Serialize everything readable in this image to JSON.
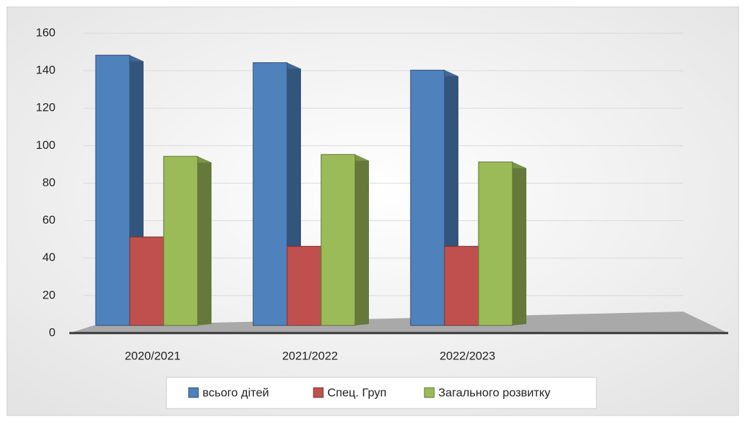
{
  "chart_data": {
    "type": "bar3d",
    "categories": [
      "2020/2021",
      "2021/2022",
      "2022/2023"
    ],
    "series": [
      {
        "name": "всього дітей",
        "color": "#4f81bd",
        "values": [
          152,
          148,
          144
        ]
      },
      {
        "name": "Спец. Груп",
        "color": "#c0504d",
        "values": [
          55,
          50,
          50
        ]
      },
      {
        "name": "Загального розвитку",
        "color": "#9bbb59",
        "values": [
          98,
          99,
          95
        ]
      }
    ],
    "ylim": [
      0,
      160
    ],
    "yticks": [
      0,
      20,
      40,
      60,
      80,
      100,
      120,
      140,
      160
    ],
    "grid": true,
    "legend": "bottom"
  }
}
